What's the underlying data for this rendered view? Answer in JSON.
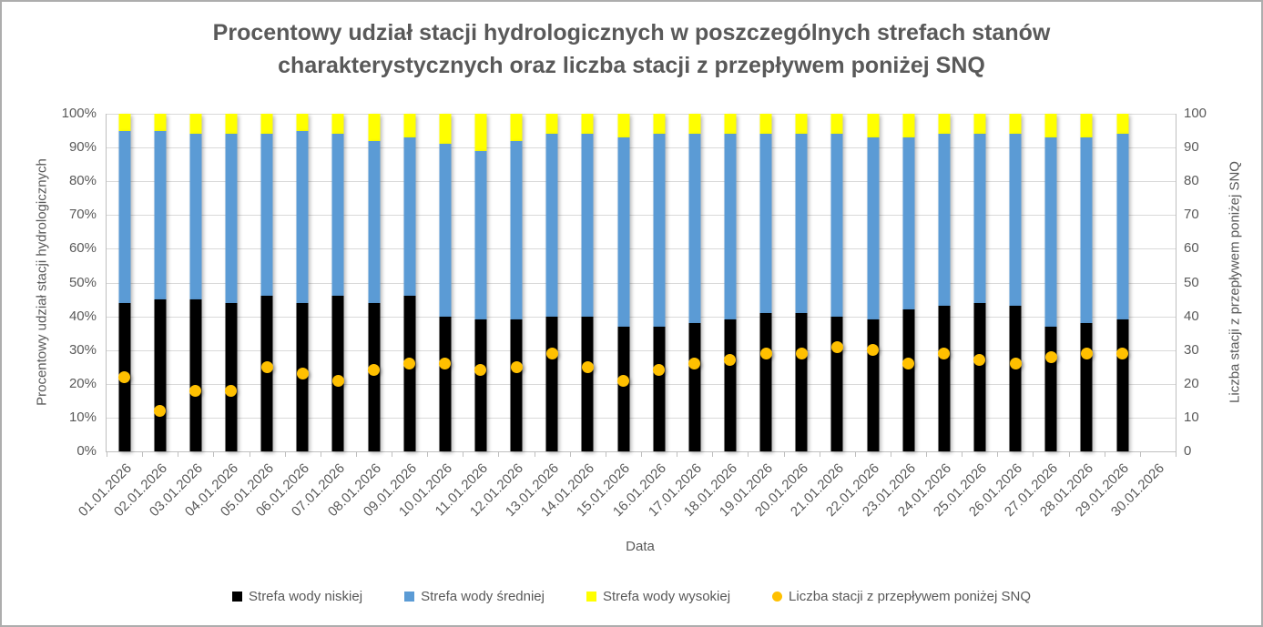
{
  "colors": {
    "series_low": "#000000",
    "series_mid": "#5b9bd5",
    "series_high": "#ffff00",
    "series_snq": "#ffc000",
    "text": "#595959",
    "gridline": "#d9d9d9",
    "axis_line": "#bfbfbf"
  },
  "chart_data": {
    "type": "combo-stacked-bar-scatter",
    "title": "Procentowy udział stacji hydrologicznych w poszczególnych strefach stanów charakterystycznych oraz liczba stacji z przepływem poniżej SNQ",
    "xlabel": "Data",
    "ylabel_left": "Procentowy udział stacji hydrologicznych",
    "ylabel_right": "Liczba stacji z przepływem poniżej SNQ",
    "ylim_left": [
      0,
      100
    ],
    "ylim_right": [
      0,
      100
    ],
    "grid": true,
    "legend_position": "bottom",
    "left_ticks": [
      "0%",
      "10%",
      "20%",
      "30%",
      "40%",
      "50%",
      "60%",
      "70%",
      "80%",
      "90%",
      "100%"
    ],
    "right_ticks": [
      "0",
      "10",
      "20",
      "30",
      "40",
      "50",
      "60",
      "70",
      "80",
      "90",
      "100"
    ],
    "categories": [
      "01.01.2026",
      "02.01.2026",
      "03.01.2026",
      "04.01.2026",
      "05.01.2026",
      "06.01.2026",
      "07.01.2026",
      "08.01.2026",
      "09.01.2026",
      "10.01.2026",
      "11.01.2026",
      "12.01.2026",
      "13.01.2026",
      "14.01.2026",
      "15.01.2026",
      "16.01.2026",
      "17.01.2026",
      "18.01.2026",
      "19.01.2026",
      "20.01.2026",
      "21.01.2026",
      "22.01.2026",
      "23.01.2026",
      "24.01.2026",
      "25.01.2026",
      "26.01.2026",
      "27.01.2026",
      "28.01.2026",
      "29.01.2026",
      "30.01.2026"
    ],
    "series": [
      {
        "name": "Strefa wody niskiej",
        "type": "bar",
        "color": "#000000",
        "values": [
          44,
          45,
          45,
          44,
          46,
          44,
          46,
          44,
          46,
          40,
          39,
          39,
          40,
          40,
          37,
          37,
          38,
          39,
          41,
          41,
          40,
          39,
          42,
          43,
          44,
          43,
          37,
          38,
          39,
          null
        ]
      },
      {
        "name": "Strefa wody średniej",
        "type": "bar",
        "color": "#5b9bd5",
        "values": [
          51,
          50,
          49,
          50,
          48,
          51,
          48,
          48,
          47,
          51,
          50,
          53,
          54,
          54,
          56,
          57,
          56,
          55,
          53,
          53,
          54,
          54,
          51,
          51,
          50,
          51,
          56,
          55,
          55,
          null
        ]
      },
      {
        "name": "Strefa wody wysokiej",
        "type": "bar",
        "color": "#ffff00",
        "values": [
          5,
          5,
          6,
          6,
          6,
          5,
          6,
          8,
          7,
          9,
          11,
          8,
          6,
          6,
          7,
          6,
          6,
          6,
          6,
          6,
          6,
          7,
          7,
          6,
          6,
          6,
          7,
          7,
          6,
          null
        ]
      },
      {
        "name": "Liczba stacji z przepływem poniżej SNQ",
        "type": "scatter",
        "axis": "right",
        "color": "#ffc000",
        "values": [
          22,
          12,
          18,
          18,
          25,
          23,
          21,
          24,
          26,
          26,
          24,
          25,
          29,
          25,
          21,
          24,
          26,
          27,
          29,
          29,
          31,
          30,
          26,
          29,
          27,
          26,
          28,
          29,
          29,
          null
        ]
      }
    ]
  }
}
